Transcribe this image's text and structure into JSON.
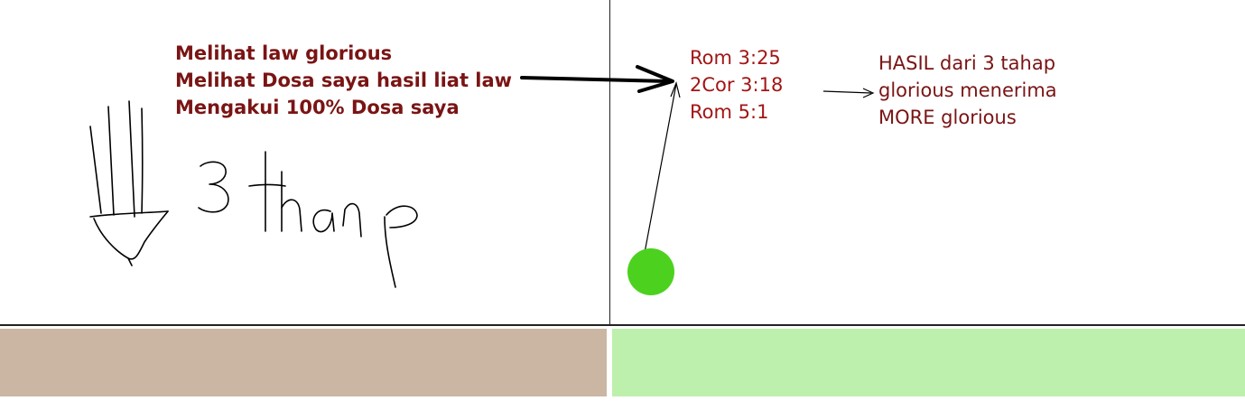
{
  "notes": {
    "lines": [
      "Melihat law glorious",
      "Melihat Dosa saya hasil liat law",
      "Mengakui 100% Dosa saya"
    ]
  },
  "verses": {
    "lines": [
      "Rom 3:25",
      "2Cor 3:18",
      "Rom 5:1"
    ]
  },
  "result": {
    "lines": [
      "HASIL dari 3 tahap",
      "glorious menerima",
      "MORE glorious"
    ]
  },
  "handwriting": {
    "label": "3 tahap"
  },
  "colors": {
    "text_dark_red": "#7a1414",
    "text_red": "#a31515",
    "left_panel": "#cab6a3",
    "right_panel": "#bdf0ad",
    "cursor_dot": "#4cd21e"
  }
}
